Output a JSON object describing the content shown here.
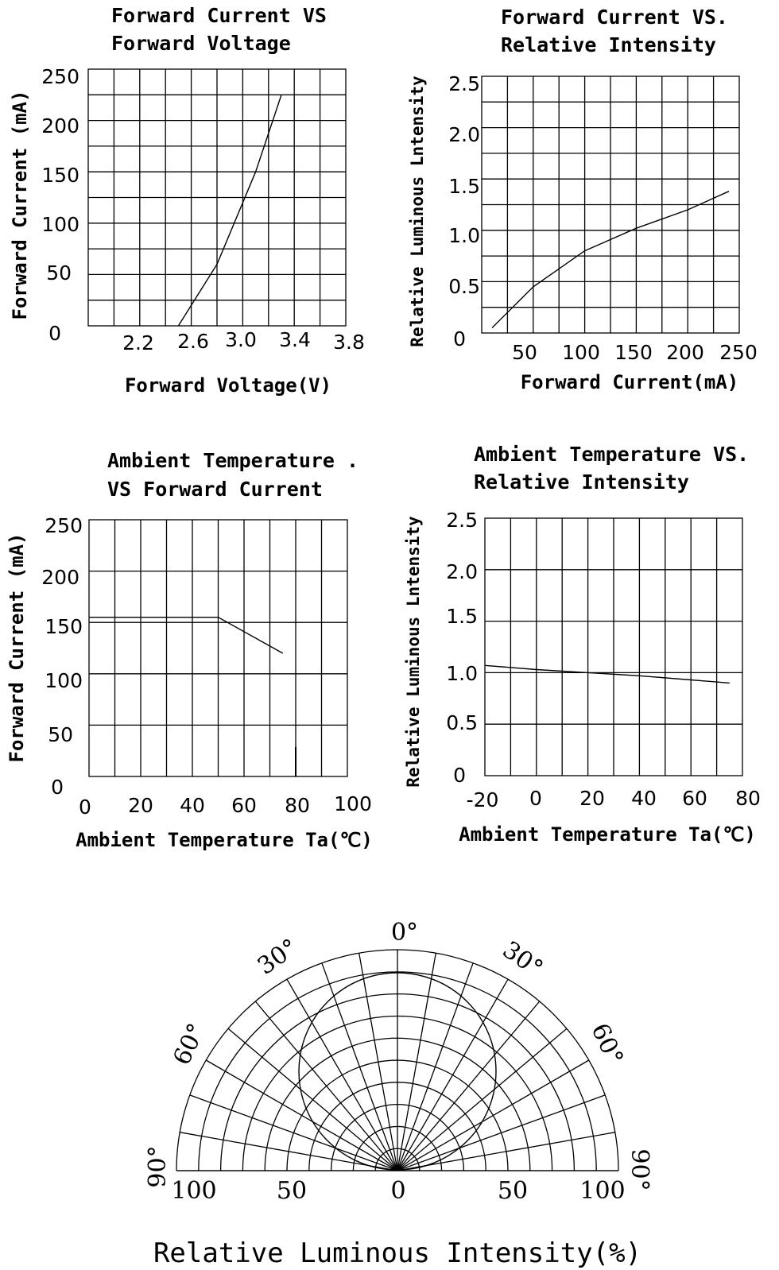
{
  "chart_data": [
    {
      "type": "line",
      "title_lines": [
        "Forward Current VS",
        "Forward Voltage"
      ],
      "xlabel": "Forward Voltage(V)",
      "ylabel": "Forward  Current (mA)",
      "xticks": [
        "2.2",
        "2.6",
        "3.0",
        "3.4",
        "3.8"
      ],
      "yticks": [
        "0",
        "50",
        "100",
        "150",
        "200",
        "250"
      ],
      "xlim": [
        1.8,
        3.8
      ],
      "ylim": [
        0,
        250
      ],
      "series": [
        {
          "x": [
            2.5,
            2.8,
            3.1,
            3.3
          ],
          "y": [
            0,
            60,
            150,
            225
          ]
        }
      ]
    },
    {
      "type": "line",
      "title_lines": [
        "Forward Current VS.",
        "Relative Intensity"
      ],
      "xlabel": "Forward Current(mA)",
      "ylabel": "Relative Luminous Lntensity",
      "xticks": [
        "50",
        "100",
        "150",
        "200",
        "250"
      ],
      "yticks": [
        "0",
        "0.5",
        "1.0",
        "1.5",
        "2.0",
        "2.5"
      ],
      "xlim": [
        0,
        250
      ],
      "ylim": [
        0,
        2.5
      ],
      "series": [
        {
          "x": [
            10,
            50,
            100,
            150,
            200,
            240
          ],
          "y": [
            0.05,
            0.45,
            0.8,
            1.02,
            1.2,
            1.38
          ]
        }
      ]
    },
    {
      "type": "line",
      "title_lines": [
        "Ambient Temperature  .",
        "VS Forward Current"
      ],
      "xlabel": "Ambient Temperature Ta(℃)",
      "ylabel": "Forward  Current (mA)",
      "xticks": [
        "0",
        "20",
        "40",
        "60",
        "80",
        "100"
      ],
      "yticks": [
        "0",
        "50",
        "100",
        "150",
        "200",
        "250"
      ],
      "xlim": [
        0,
        100
      ],
      "ylim": [
        0,
        250
      ],
      "series": [
        {
          "x": [
            0,
            50,
            75
          ],
          "y": [
            155,
            155,
            120
          ]
        }
      ]
    },
    {
      "type": "line",
      "title_lines": [
        "Ambient Temperature VS.",
        "Relative Intensity"
      ],
      "xlabel": "Ambient Temperature Ta(℃)",
      "ylabel": "Relative Luminous Lntensity",
      "xticks": [
        "-20",
        "0",
        "20",
        "40",
        "60",
        "80"
      ],
      "yticks": [
        "0",
        "0.5",
        "1.0",
        "1.5",
        "2.0",
        "2.5"
      ],
      "xlim": [
        -20,
        80
      ],
      "ylim": [
        0,
        2.5
      ],
      "series": [
        {
          "x": [
            -20,
            0,
            20,
            40,
            60,
            75
          ],
          "y": [
            1.07,
            1.03,
            1.0,
            0.97,
            0.93,
            0.9
          ]
        }
      ]
    },
    {
      "type": "polar",
      "title": "Relative Luminous Intensity(%)",
      "angle_labels": [
        "0°",
        "30°",
        "30°",
        "60°",
        "60°",
        "90°",
        "90°"
      ],
      "radial_labels": [
        "100",
        "50",
        "0",
        "50",
        "100"
      ],
      "pattern": "circle through origin, intensity = cos(angle)"
    }
  ]
}
